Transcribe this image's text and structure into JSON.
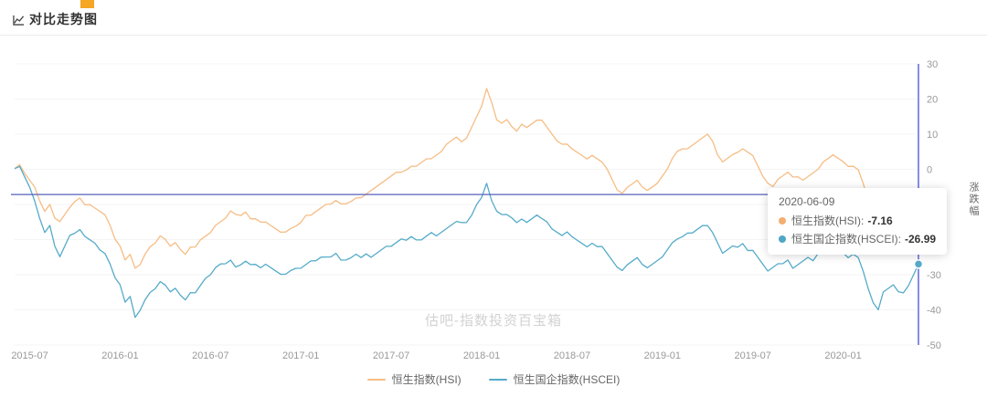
{
  "header": {
    "title": "对比走势图"
  },
  "watermark": "估吧-指数投资百宝箱",
  "tooltip": {
    "date": "2020-06-09",
    "items": [
      {
        "label": "恒生指数(HSI):",
        "value": "-7.16",
        "color": "#f3ae72"
      },
      {
        "label": "恒生国企指数(HSCEI):",
        "value": "-26.99",
        "color": "#4fa6c6"
      }
    ]
  },
  "crosshair": {
    "h_value": -7.16,
    "date": "2020-06-09",
    "h_color": "#5560bb",
    "v_color": "#7a80e0"
  },
  "chart_data": {
    "type": "line",
    "title": "对比走势图",
    "xlabel": "",
    "ylabel": "涨跌幅",
    "ylim": [
      -50,
      30
    ],
    "y_ticks": [
      30,
      20,
      10,
      0,
      -10,
      -20,
      -30,
      -40,
      -50
    ],
    "x_ticks": [
      "2015-07",
      "2016-01",
      "2016-07",
      "2017-01",
      "2017-07",
      "2018-01",
      "2018-07",
      "2019-01",
      "2019-07",
      "2020-01"
    ],
    "x_range": [
      "2015-06",
      "2020-06"
    ],
    "grid": true,
    "legend_position": "bottom",
    "series": [
      {
        "name": "恒生指数(HSI)",
        "color": "#f6bd85",
        "values": [
          0,
          1.5,
          -1,
          -3,
          -5,
          -9,
          -12,
          -10,
          -14,
          -15,
          -13,
          -11,
          -9,
          -8,
          -10,
          -10,
          -11,
          -12,
          -13,
          -16,
          -20,
          -22,
          -26,
          -24,
          -28,
          -27,
          -24,
          -22,
          -21,
          -19,
          -20,
          -22,
          -21,
          -23,
          -24,
          -22,
          -22,
          -20,
          -19,
          -18,
          -16,
          -15,
          -14,
          -12,
          -13,
          -13,
          -12,
          -14,
          -14,
          -15,
          -15,
          -16,
          -17,
          -18,
          -18,
          -17,
          -16,
          -15,
          -13,
          -13,
          -12,
          -11,
          -10,
          -10,
          -9,
          -10,
          -10,
          -9,
          -8,
          -8,
          -7,
          -6,
          -5,
          -4,
          -3,
          -2,
          -1,
          -1,
          0,
          1,
          1,
          2,
          3,
          3,
          4,
          5,
          7,
          8,
          9,
          8,
          9,
          12,
          15,
          18,
          23,
          19,
          14,
          13,
          14,
          12,
          11,
          13,
          12,
          13,
          14,
          14,
          12,
          10,
          8,
          7,
          7,
          6,
          5,
          4,
          3,
          4,
          3,
          2,
          0,
          -3,
          -6,
          -7,
          -5,
          -4,
          -3,
          -5,
          -6,
          -5,
          -4,
          -2,
          0,
          3,
          5,
          6,
          6,
          7,
          8,
          9,
          10,
          8,
          4,
          2,
          3,
          4,
          5,
          6,
          5,
          4,
          1,
          -2,
          -4,
          -5,
          -3,
          -2,
          -1,
          -2,
          -2,
          -3,
          -2,
          -1,
          0,
          2,
          3,
          4,
          3,
          2,
          1,
          1,
          0,
          -4,
          -9,
          -13,
          -15,
          -11,
          -10,
          -9,
          -12,
          -14,
          -12,
          -9,
          -7.16
        ]
      },
      {
        "name": "恒生国企指数(HSCEI)",
        "color": "#55abc9",
        "values": [
          0,
          1,
          -2,
          -5,
          -9,
          -14,
          -18,
          -16,
          -22,
          -25,
          -22,
          -19,
          -18,
          -17,
          -19,
          -20,
          -21,
          -23,
          -24,
          -27,
          -31,
          -33,
          -38,
          -36,
          -42,
          -40,
          -37,
          -35,
          -34,
          -32,
          -33,
          -35,
          -34,
          -36,
          -37,
          -35,
          -35,
          -33,
          -31,
          -30,
          -28,
          -27,
          -27,
          -26,
          -28,
          -27,
          -26,
          -27,
          -27,
          -28,
          -27,
          -28,
          -29,
          -30,
          -30,
          -29,
          -28,
          -28,
          -27,
          -26,
          -26,
          -25,
          -25,
          -25,
          -24,
          -26,
          -26,
          -25,
          -24,
          -25,
          -24,
          -25,
          -24,
          -23,
          -22,
          -22,
          -21,
          -20,
          -20,
          -19,
          -20,
          -20,
          -19,
          -18,
          -19,
          -18,
          -17,
          -16,
          -15,
          -15,
          -15,
          -13,
          -10,
          -8,
          -4,
          -9,
          -12,
          -13,
          -13,
          -14,
          -15,
          -14,
          -15,
          -14,
          -13,
          -14,
          -15,
          -17,
          -18,
          -19,
          -18,
          -19,
          -20,
          -21,
          -22,
          -21,
          -22,
          -22,
          -24,
          -26,
          -28,
          -29,
          -27,
          -26,
          -25,
          -27,
          -28,
          -27,
          -26,
          -25,
          -23,
          -21,
          -20,
          -19,
          -18,
          -18,
          -17,
          -16,
          -16,
          -18,
          -21,
          -24,
          -23,
          -22,
          -22,
          -21,
          -23,
          -23,
          -25,
          -27,
          -29,
          -28,
          -27,
          -27,
          -26,
          -28,
          -27,
          -26,
          -25,
          -26,
          -24,
          -23,
          -22,
          -23,
          -24,
          -24,
          -25,
          -24,
          -25,
          -29,
          -34,
          -38,
          -40,
          -35,
          -34,
          -33,
          -35,
          -35,
          -33,
          -30,
          -26.99
        ]
      }
    ]
  }
}
